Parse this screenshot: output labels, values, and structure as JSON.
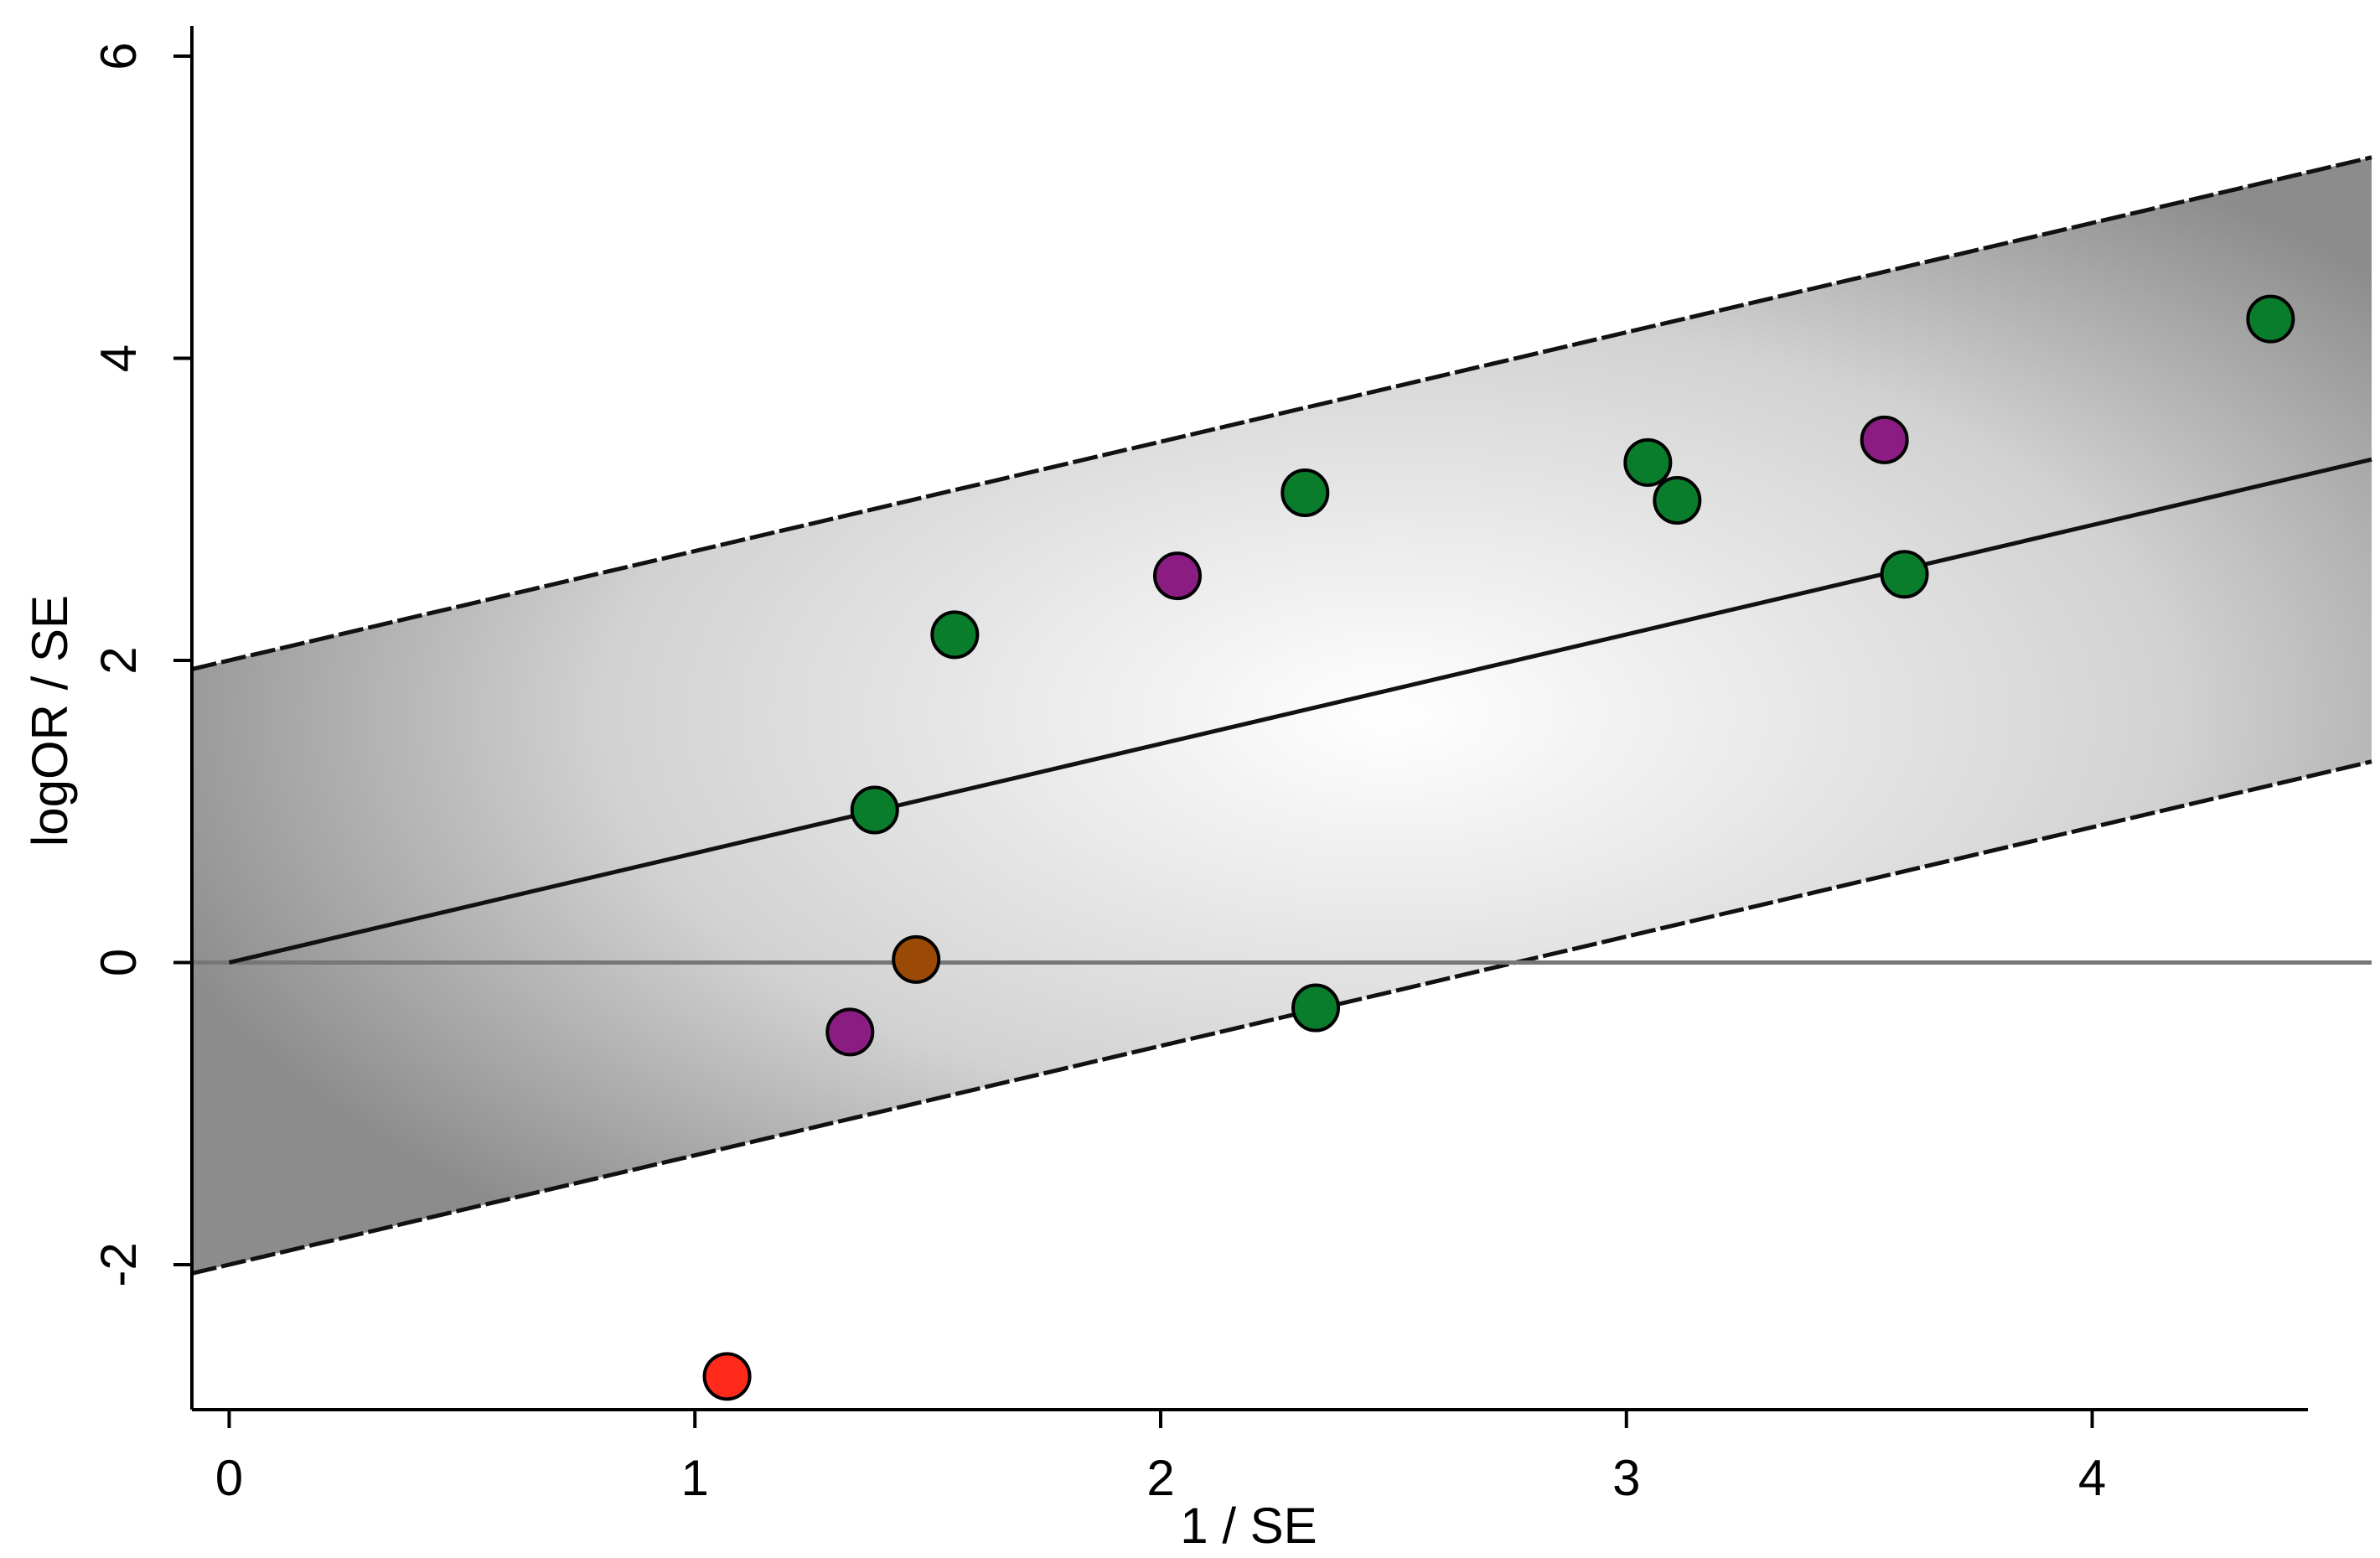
{
  "chart_data": {
    "type": "scatter",
    "xlabel": "1 / SE",
    "ylabel": "logOR / SE",
    "xlim": [
      -0.08,
      4.6
    ],
    "ylim": [
      -2.96,
      6.2
    ],
    "xticks": [
      0,
      1,
      2,
      3,
      4
    ],
    "yticks": [
      -2,
      0,
      2,
      4,
      6
    ],
    "hline": 0,
    "fit": {
      "intercept": 0,
      "slope": 0.724,
      "band": 2
    },
    "series": [
      {
        "color": "#0a7d2c",
        "x": [
          1.386,
          1.558,
          2.31,
          3.046,
          3.109,
          3.597,
          4.383,
          2.333
        ],
        "values": [
          1.01,
          2.17,
          3.11,
          3.31,
          3.06,
          2.57,
          4.26,
          -0.3
        ]
      },
      {
        "color": "#8b1c82",
        "x": [
          2.036,
          3.554,
          1.333
        ],
        "values": [
          2.56,
          3.46,
          -0.46
        ]
      },
      {
        "color": "#9a4a06",
        "x": [
          1.475
        ],
        "values": [
          0.02
        ]
      },
      {
        "color": "#ff2a1a",
        "x": [
          1.069
        ],
        "values": [
          -2.74
        ]
      }
    ]
  }
}
